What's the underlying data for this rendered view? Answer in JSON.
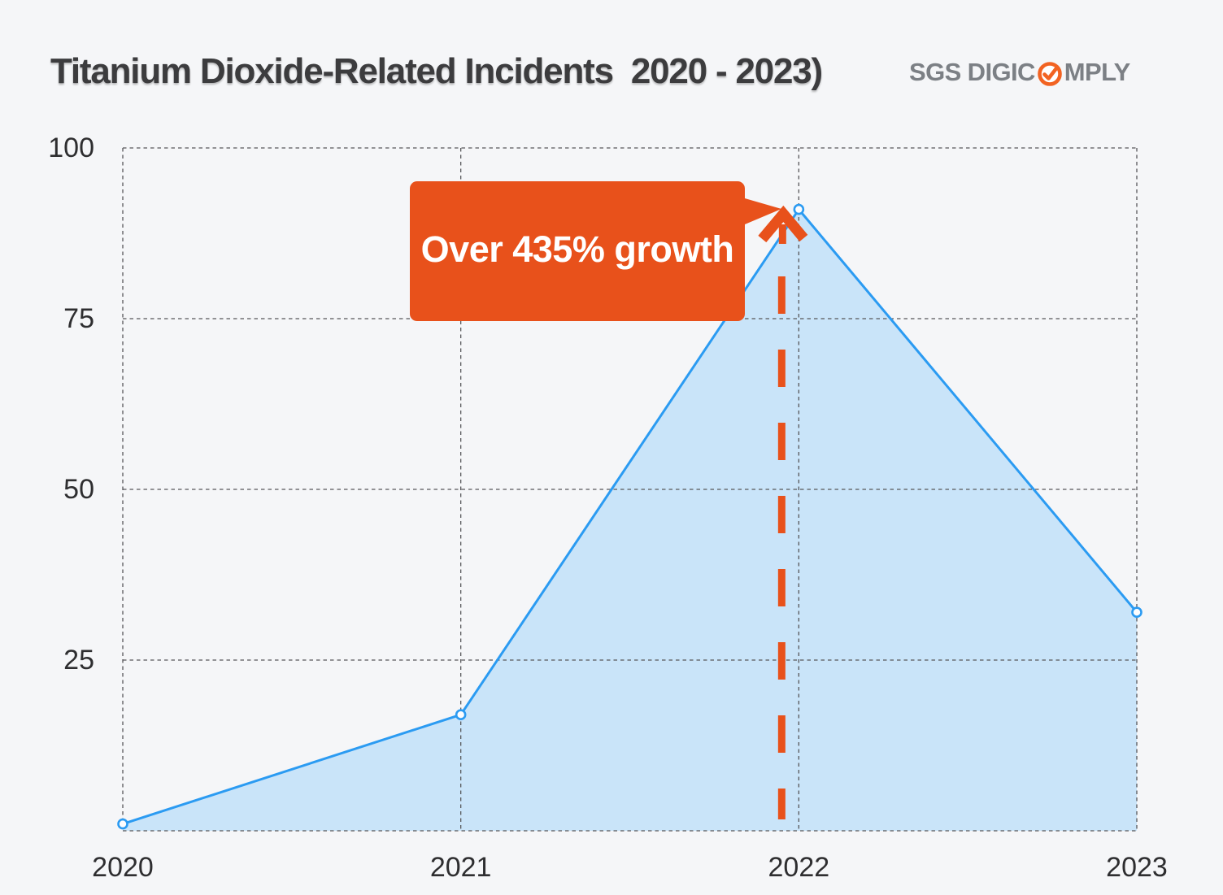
{
  "page": {
    "background_color": "#f5f6f8"
  },
  "header": {
    "title": "Titanium Dioxide-Related Incidents  2020 - 2023)",
    "logo": {
      "text_left": "SGS DIGIC",
      "text_right": "MPLY",
      "icon": "check-circle-icon",
      "icon_color": "#f26322",
      "text_color": "#7c8085"
    }
  },
  "chart_data": {
    "type": "area",
    "title": "Titanium Dioxide-Related Incidents  2020 - 2023)",
    "categories": [
      "2020",
      "2021",
      "2022",
      "2023"
    ],
    "series": [
      {
        "name": "Titanium dioxide-related incidents",
        "values": [
          1,
          17,
          91,
          32
        ]
      }
    ],
    "xlabel": "",
    "ylabel": "",
    "ylim": [
      0,
      100
    ],
    "yticks": [
      100,
      75,
      50,
      25
    ],
    "grid": "dashed-both-axes",
    "legend_position": "none",
    "marker": "open-circle",
    "line_color": "#2b9bf2",
    "fill_color": "#c9e4f9",
    "gridline_color": "#57575a",
    "tick_color": "#2e2e30",
    "annotation": {
      "text": "Over 435% growth",
      "target_category": "2022",
      "target_value": 91,
      "box_color": "#e8511b",
      "text_color": "#ffffff",
      "elements": [
        "callout-box",
        "pointer-triangle",
        "up-arrow",
        "vertical-dashed-line"
      ]
    }
  }
}
